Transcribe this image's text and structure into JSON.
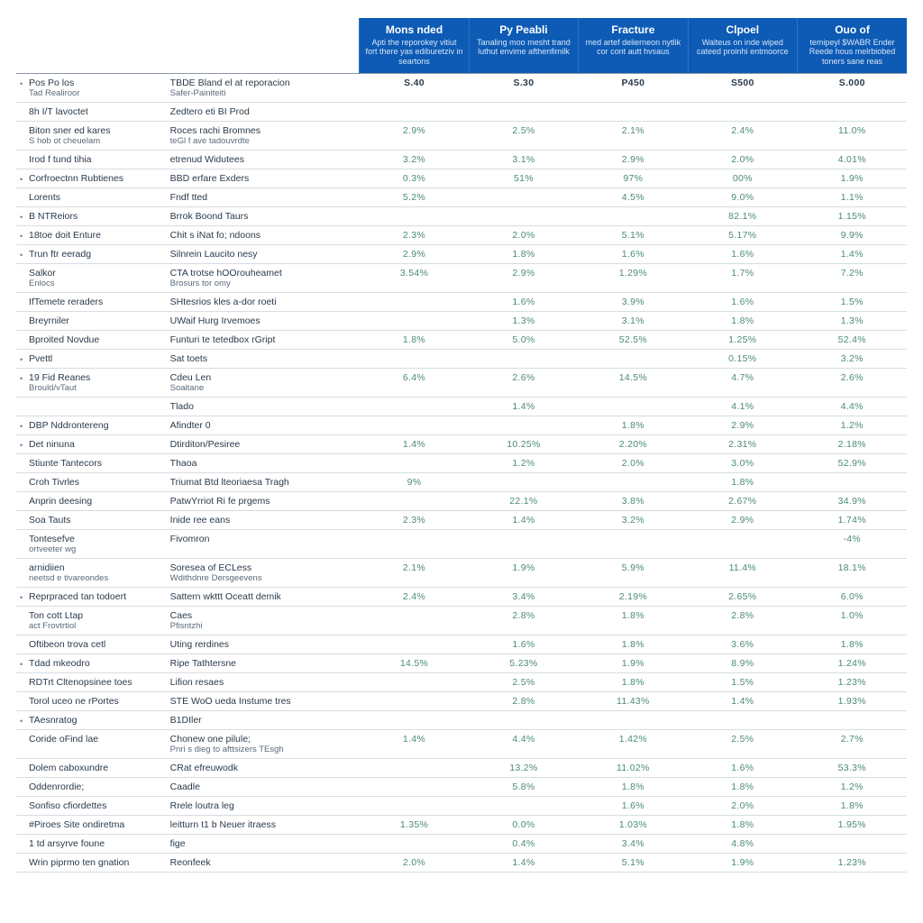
{
  "table": {
    "header_bg": "#0d5bb5",
    "value_color": "#4a8a7a",
    "columns": [
      {
        "title": "Mons nded",
        "sub": "Apti the reporokey vitiut fort there yas ediburetziv in seartons"
      },
      {
        "title": "Py Peabli",
        "sub": "Tanaling moo mesht trand luthut envime afthenfimilk"
      },
      {
        "title": "Fracture",
        "sub": "med artef delierneon nytlik cor cont autt hvsaus"
      },
      {
        "title": "Clpoel",
        "sub": "Walteus on inde wiped cateed proinhi entmoorce"
      },
      {
        "title": "Ouo of",
        "sub": "temipeyl $WABR Ender Reede hous melrbiobed toners sane reas"
      }
    ],
    "rows": [
      {
        "bullet": true,
        "section": true,
        "cat": "Pos Po los",
        "cat2": "Tad Realiroor",
        "desc": "TBDE Bland el at reporacion",
        "desc2": "Safer-Painiteiti",
        "vals": [
          "S.40",
          "S.30",
          "P450",
          "S500",
          "S.000"
        ],
        "plain": true
      },
      {
        "section": true,
        "cat": "8h I/T lavoctet",
        "desc": "Zedtero eti BI Prod",
        "vals": [
          "",
          "",
          "",
          "",
          ""
        ]
      },
      {
        "cat": "Biton sner ed kares",
        "cat2": "S hob ot cheuelam",
        "desc": "Roces rachi Bromnes",
        "desc2": "teGl f ave tadouvrdte",
        "vals": [
          "2.9%",
          "2.5%",
          "2.1%",
          "2.4%",
          "11.0%"
        ]
      },
      {
        "cat": "Irod f tund tihia",
        "desc": "etrenud Widutees",
        "vals": [
          "3.2%",
          "3.1%",
          "2.9%",
          "2.0%",
          "4.01%"
        ]
      },
      {
        "bullet": true,
        "section": true,
        "cat": "Corfroectnn Rubtienes",
        "desc": "BBD erfare Exders",
        "vals": [
          "0.3%",
          "51%",
          "97%",
          "00%",
          "1.9%"
        ]
      },
      {
        "cat": "Lorents",
        "desc": "Fndf tted",
        "vals": [
          "5.2%",
          "",
          "4.5%",
          "9.0%",
          "1.1%"
        ]
      },
      {
        "bullet": true,
        "cat": "B NTReiors",
        "desc": "Brrok Boond Taurs",
        "vals": [
          "",
          "",
          "",
          "82.1%",
          "1.15%"
        ]
      },
      {
        "bullet": true,
        "section": true,
        "cat": "18toe doit Enture",
        "desc": "Chit s iNat fo; ndoons",
        "vals": [
          "2.3%",
          "2.0%",
          "5.1%",
          "5.17%",
          "9.9%"
        ]
      },
      {
        "bullet": true,
        "section": true,
        "cat": "Trun ftr eeradg",
        "desc": "Silnrein Laucito nesy",
        "vals": [
          "2.9%",
          "1.8%",
          "1.6%",
          "1.6%",
          "1.4%"
        ]
      },
      {
        "section": true,
        "cat": "Salkor",
        "cat2": "Enlocs",
        "desc": "CTA trotse hOOrouheamet",
        "desc2": "Brosurs tor omy",
        "vals": [
          "3.54%",
          "2.9%",
          "1.29%",
          "1.7%",
          "7.2%"
        ]
      },
      {
        "section": true,
        "cat": "IfTemete reraders",
        "desc": "SHtesrios kles a-dor roeti",
        "vals": [
          "",
          "1.6%",
          "3.9%",
          "1.6%",
          "1.5%"
        ]
      },
      {
        "cat": "Breyrniler",
        "desc": "UWaif Hurg Irvemoes",
        "vals": [
          "",
          "1.3%",
          "3.1%",
          "1.8%",
          "1.3%"
        ]
      },
      {
        "cat": "Bproited Novdue",
        "desc": "Funturi te tetedbox rGript",
        "vals": [
          "1.8%",
          "5.0%",
          "52.5%",
          "1.25%",
          "52.4%"
        ]
      },
      {
        "bullet": true,
        "section": true,
        "cat": "Pvettl",
        "desc": "Sat toets",
        "vals": [
          "",
          "",
          "",
          "0.15%",
          "3.2%"
        ]
      },
      {
        "bullet": true,
        "cat": "19 Fid Reanes",
        "cat2": "Brould/vTaut",
        "desc": "Cdeu Len",
        "desc2": "Soaitane",
        "vals": [
          "6.4%",
          "2.6%",
          "14.5%",
          "4.7%",
          "2.6%"
        ]
      },
      {
        "cat": "",
        "desc": "Tlado",
        "vals": [
          "",
          "1.4%",
          "",
          "4.1%",
          "4.4%"
        ]
      },
      {
        "bullet": true,
        "section": true,
        "cat": "DBP Nddrontereng",
        "desc": "Afindter 0",
        "vals": [
          "",
          "",
          "1.8%",
          "2.9%",
          "1.2%"
        ]
      },
      {
        "bullet": true,
        "cat": "Det ninuna",
        "desc": "Dtirditon/Pesiree",
        "vals": [
          "1.4%",
          "10.25%",
          "2.20%",
          "2.31%",
          "2.18%"
        ]
      },
      {
        "cat": "Stiunte Tantecors",
        "desc": "Thaoa",
        "vals": [
          "",
          "1.2%",
          "2.0%",
          "3.0%",
          "52.9%"
        ]
      },
      {
        "cat": "Croh Tivrles",
        "desc": "Triumat Btd lteoriaesa Tragh",
        "vals": [
          "9%",
          "",
          "",
          "1.8%",
          ""
        ]
      },
      {
        "section": true,
        "cat": "Anprin deesing",
        "desc": "PatwYrriot Ri fe prgems",
        "vals": [
          "",
          "22.1%",
          "3.8%",
          "2.67%",
          "34.9%"
        ]
      },
      {
        "section": true,
        "cat": "Soa Tauts",
        "desc": "Inide ree eans",
        "vals": [
          "2.3%",
          "1.4%",
          "3.2%",
          "2.9%",
          "1.74%"
        ]
      },
      {
        "cat": "Tontesefve",
        "cat2": "ortveeter wg",
        "desc": "Fivomron",
        "vals": [
          "",
          "",
          "",
          "",
          "-4%"
        ]
      },
      {
        "cat": "arnidiien",
        "cat2": "neetsd e tivareondes",
        "desc": "Soresea of ECLess",
        "desc2": "Wdithdnre Dersgeevens",
        "vals": [
          "2.1%",
          "1.9%",
          "5.9%",
          "11.4%",
          "18.1%"
        ]
      },
      {
        "bullet": true,
        "section": true,
        "cat": "Reprpraced tan todoert",
        "desc": "Sattern wkttt Oceatt demik",
        "vals": [
          "2.4%",
          "3.4%",
          "2.19%",
          "2.65%",
          "6.0%"
        ]
      },
      {
        "cat": "Ton cott Ltap",
        "cat2": "act Frovtrtiol",
        "desc": "Caes",
        "desc2": "Pfisntzhi",
        "vals": [
          "",
          "2.8%",
          "1.8%",
          "2.8%",
          "1.0%"
        ]
      },
      {
        "cat": "Oftibeon trova cetl",
        "desc": "Uting rerdines",
        "vals": [
          "",
          "1.6%",
          "1.8%",
          "3.6%",
          "1.8%"
        ]
      },
      {
        "bullet": true,
        "section": true,
        "cat": "Tdad mkeodro",
        "desc": "Ripe Tathtersne",
        "vals": [
          "14.5%",
          "5.23%",
          "1.9%",
          "8.9%",
          "1.24%"
        ]
      },
      {
        "cat": "RDTrt Cltenopsinee toes",
        "desc": "Lifion resaes",
        "vals": [
          "",
          "2.5%",
          "1.8%",
          "1.5%",
          "1.23%"
        ]
      },
      {
        "cat": "Torol uceo ne rPortes",
        "desc": "STE WoO ueda Instume tres",
        "vals": [
          "",
          "2.8%",
          "11.43%",
          "1.4%",
          "1.93%"
        ]
      },
      {
        "bullet": true,
        "section": true,
        "cat": "TAesnratog",
        "desc": "B1DIler",
        "vals": [
          "",
          "",
          "",
          "",
          ""
        ]
      },
      {
        "cat": "Coride oFind lae",
        "desc": "Chonew one pilule;",
        "desc2": "Pnri s dieg to afttsizers TEsgh",
        "vals": [
          "1.4%",
          "4.4%",
          "1.42%",
          "2.5%",
          "2.7%"
        ]
      },
      {
        "section": true,
        "cat": "Dolem caboxundre",
        "desc": "CRat efreuwodk",
        "vals": [
          "",
          "13.2%",
          "11.02%",
          "1.6%",
          "53.3%"
        ]
      },
      {
        "cat": "Oddenrordie;",
        "desc": "Caadle",
        "vals": [
          "",
          "5.8%",
          "1.8%",
          "1.8%",
          "1.2%"
        ]
      },
      {
        "cat": "Sonfiso cfiordettes",
        "desc": "Rrele loutra leg",
        "vals": [
          "",
          "",
          "1.6%",
          "2.0%",
          "1.8%"
        ]
      },
      {
        "section": true,
        "cat": "#Piroes Site ondiretma",
        "desc": "leitturn t1 b Neuer itraess",
        "vals": [
          "1.35%",
          "0.0%",
          "1.03%",
          "1.8%",
          "1.95%"
        ]
      },
      {
        "cat": "1 td arsyrve foune",
        "desc": "fige",
        "vals": [
          "",
          "0.4%",
          "3.4%",
          "4.8%",
          ""
        ]
      },
      {
        "section": true,
        "cat": "Wrin piprmo ten gnation",
        "desc": "Reonfeek",
        "vals": [
          "2.0%",
          "1.4%",
          "5.1%",
          "1.9%",
          "1.23%"
        ]
      }
    ]
  }
}
